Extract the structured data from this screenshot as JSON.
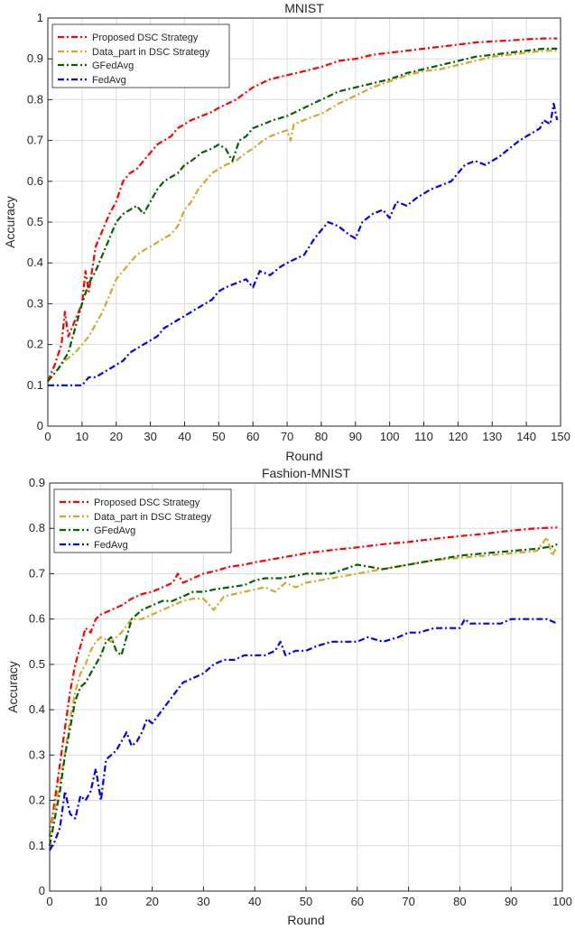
{
  "chart_data": [
    {
      "type": "line",
      "title": "MNIST",
      "xlabel": "Round",
      "ylabel": "Accuracy",
      "xlim": [
        0,
        150
      ],
      "ylim": [
        0,
        1
      ],
      "xticks": [
        0,
        10,
        20,
        30,
        40,
        50,
        60,
        70,
        80,
        90,
        100,
        110,
        120,
        130,
        140,
        150
      ],
      "yticks": [
        0,
        0.1,
        0.2,
        0.3,
        0.4,
        0.5,
        0.6,
        0.7,
        0.8,
        0.9,
        1
      ],
      "xtick_labels": [
        "0",
        "10",
        "20",
        "30",
        "40",
        "50",
        "60",
        "70",
        "80",
        "90",
        "100",
        "110",
        "120",
        "130",
        "140",
        "150"
      ],
      "ytick_labels": [
        "0",
        "0.1",
        "0.2",
        "0.3",
        "0.4",
        "0.5",
        "0.6",
        "0.7",
        "0.8",
        "0.9",
        "1"
      ],
      "grid": true,
      "legend_position": "top-left",
      "series": [
        {
          "name": "Proposed DSC Strategy",
          "color": "#ff0000",
          "x": [
            0,
            2,
            4,
            5,
            6,
            8,
            10,
            11,
            12,
            14,
            16,
            18,
            20,
            22,
            24,
            26,
            28,
            30,
            32,
            34,
            36,
            38,
            40,
            42,
            45,
            48,
            50,
            55,
            60,
            65,
            70,
            75,
            80,
            85,
            90,
            95,
            100,
            105,
            110,
            115,
            120,
            125,
            130,
            135,
            140,
            145,
            149
          ],
          "y": [
            0.11,
            0.15,
            0.2,
            0.28,
            0.22,
            0.26,
            0.3,
            0.38,
            0.33,
            0.44,
            0.48,
            0.52,
            0.55,
            0.6,
            0.62,
            0.63,
            0.65,
            0.67,
            0.69,
            0.7,
            0.71,
            0.73,
            0.74,
            0.75,
            0.76,
            0.77,
            0.78,
            0.8,
            0.83,
            0.85,
            0.86,
            0.87,
            0.88,
            0.895,
            0.9,
            0.91,
            0.915,
            0.92,
            0.925,
            0.93,
            0.935,
            0.94,
            0.943,
            0.945,
            0.948,
            0.95,
            0.95
          ]
        },
        {
          "name": "Data_part in DSC Strategy",
          "color": "#d4a72c",
          "x": [
            0,
            5,
            8,
            10,
            12,
            14,
            16,
            18,
            20,
            22,
            24,
            26,
            28,
            30,
            32,
            34,
            36,
            38,
            40,
            42,
            44,
            46,
            48,
            50,
            52,
            55,
            58,
            60,
            63,
            65,
            68,
            70,
            71,
            72,
            75,
            78,
            80,
            85,
            90,
            95,
            100,
            105,
            110,
            115,
            120,
            125,
            130,
            135,
            140,
            145,
            149
          ],
          "y": [
            0.11,
            0.16,
            0.18,
            0.2,
            0.22,
            0.25,
            0.28,
            0.32,
            0.36,
            0.38,
            0.4,
            0.42,
            0.43,
            0.44,
            0.45,
            0.46,
            0.47,
            0.49,
            0.53,
            0.55,
            0.58,
            0.6,
            0.62,
            0.63,
            0.64,
            0.65,
            0.67,
            0.68,
            0.7,
            0.71,
            0.72,
            0.725,
            0.7,
            0.74,
            0.75,
            0.76,
            0.765,
            0.79,
            0.81,
            0.83,
            0.845,
            0.86,
            0.87,
            0.875,
            0.885,
            0.895,
            0.905,
            0.91,
            0.915,
            0.92,
            0.92
          ]
        },
        {
          "name": "GFedAvg",
          "color": "#006400",
          "x": [
            0,
            3,
            6,
            8,
            10,
            12,
            14,
            16,
            18,
            20,
            22,
            24,
            26,
            28,
            30,
            32,
            34,
            36,
            38,
            40,
            42,
            45,
            48,
            50,
            52,
            54,
            56,
            58,
            60,
            63,
            66,
            70,
            75,
            80,
            85,
            90,
            95,
            100,
            105,
            110,
            115,
            120,
            125,
            130,
            135,
            140,
            145,
            149
          ],
          "y": [
            0.11,
            0.14,
            0.18,
            0.24,
            0.3,
            0.35,
            0.38,
            0.42,
            0.46,
            0.5,
            0.52,
            0.53,
            0.54,
            0.52,
            0.55,
            0.58,
            0.6,
            0.61,
            0.62,
            0.64,
            0.65,
            0.67,
            0.68,
            0.69,
            0.68,
            0.65,
            0.7,
            0.71,
            0.73,
            0.74,
            0.75,
            0.76,
            0.78,
            0.8,
            0.82,
            0.83,
            0.84,
            0.85,
            0.865,
            0.875,
            0.885,
            0.895,
            0.905,
            0.91,
            0.915,
            0.92,
            0.925,
            0.925
          ]
        },
        {
          "name": "FedAvg",
          "color": "#0000ff",
          "x": [
            0,
            5,
            10,
            12,
            14,
            16,
            18,
            20,
            22,
            24,
            26,
            28,
            30,
            32,
            34,
            36,
            38,
            40,
            42,
            44,
            46,
            48,
            50,
            52,
            55,
            58,
            60,
            62,
            65,
            68,
            70,
            75,
            78,
            80,
            82,
            85,
            88,
            90,
            92,
            95,
            98,
            100,
            102,
            105,
            108,
            110,
            112,
            115,
            118,
            120,
            122,
            125,
            128,
            130,
            132,
            135,
            138,
            140,
            142,
            144,
            145,
            147,
            148,
            149
          ],
          "y": [
            0.1,
            0.1,
            0.1,
            0.12,
            0.12,
            0.13,
            0.14,
            0.15,
            0.16,
            0.18,
            0.19,
            0.2,
            0.21,
            0.22,
            0.24,
            0.25,
            0.26,
            0.27,
            0.28,
            0.29,
            0.3,
            0.31,
            0.33,
            0.34,
            0.35,
            0.36,
            0.34,
            0.38,
            0.37,
            0.39,
            0.4,
            0.42,
            0.46,
            0.48,
            0.5,
            0.49,
            0.47,
            0.46,
            0.5,
            0.52,
            0.53,
            0.51,
            0.55,
            0.54,
            0.56,
            0.57,
            0.58,
            0.59,
            0.6,
            0.62,
            0.64,
            0.65,
            0.64,
            0.65,
            0.66,
            0.68,
            0.7,
            0.71,
            0.72,
            0.73,
            0.75,
            0.74,
            0.79,
            0.75
          ]
        }
      ]
    },
    {
      "type": "line",
      "title": "Fashion-MNIST",
      "xlabel": "Round",
      "ylabel": "Accuracy",
      "xlim": [
        0,
        100
      ],
      "ylim": [
        0,
        0.9
      ],
      "xticks": [
        0,
        10,
        20,
        30,
        40,
        50,
        60,
        70,
        80,
        90,
        100
      ],
      "yticks": [
        0,
        0.1,
        0.2,
        0.3,
        0.4,
        0.5,
        0.6,
        0.7,
        0.8,
        0.9
      ],
      "xtick_labels": [
        "0",
        "10",
        "20",
        "30",
        "40",
        "50",
        "60",
        "70",
        "80",
        "90",
        "100"
      ],
      "ytick_labels": [
        "0",
        "0.1",
        "0.2",
        "0.3",
        "0.4",
        "0.5",
        "0.6",
        "0.7",
        "0.8",
        "0.9"
      ],
      "grid": true,
      "legend_position": "top-left",
      "series": [
        {
          "name": "Proposed DSC Strategy",
          "color": "#ff0000",
          "x": [
            0,
            1,
            2,
            3,
            4,
            5,
            6,
            7,
            8,
            9,
            10,
            12,
            14,
            16,
            18,
            20,
            22,
            24,
            25,
            26,
            28,
            30,
            32,
            35,
            38,
            40,
            45,
            50,
            55,
            60,
            65,
            70,
            75,
            80,
            85,
            90,
            95,
            99
          ],
          "y": [
            0.12,
            0.2,
            0.28,
            0.36,
            0.44,
            0.5,
            0.54,
            0.58,
            0.57,
            0.6,
            0.61,
            0.62,
            0.63,
            0.645,
            0.655,
            0.66,
            0.67,
            0.68,
            0.7,
            0.68,
            0.69,
            0.7,
            0.705,
            0.715,
            0.72,
            0.725,
            0.735,
            0.745,
            0.752,
            0.758,
            0.765,
            0.77,
            0.777,
            0.783,
            0.788,
            0.795,
            0.8,
            0.802
          ]
        },
        {
          "name": "Data_part in DSC Strategy",
          "color": "#d4a72c",
          "x": [
            0,
            1,
            2,
            3,
            4,
            5,
            6,
            7,
            8,
            9,
            10,
            12,
            14,
            16,
            18,
            20,
            22,
            24,
            26,
            28,
            30,
            32,
            34,
            36,
            38,
            40,
            42,
            44,
            46,
            48,
            50,
            55,
            60,
            65,
            70,
            75,
            80,
            85,
            90,
            95,
            97,
            98,
            99
          ],
          "y": [
            0.12,
            0.18,
            0.24,
            0.3,
            0.38,
            0.44,
            0.48,
            0.5,
            0.53,
            0.55,
            0.56,
            0.55,
            0.57,
            0.6,
            0.6,
            0.61,
            0.62,
            0.63,
            0.64,
            0.645,
            0.645,
            0.62,
            0.65,
            0.655,
            0.66,
            0.665,
            0.67,
            0.66,
            0.68,
            0.67,
            0.68,
            0.69,
            0.7,
            0.71,
            0.72,
            0.73,
            0.735,
            0.74,
            0.745,
            0.75,
            0.78,
            0.74,
            0.76
          ]
        },
        {
          "name": "GFedAvg",
          "color": "#006400",
          "x": [
            0,
            1,
            2,
            3,
            4,
            5,
            6,
            7,
            8,
            9,
            10,
            11,
            12,
            13,
            14,
            15,
            16,
            17,
            18,
            20,
            22,
            24,
            26,
            28,
            30,
            32,
            35,
            38,
            40,
            42,
            45,
            48,
            50,
            55,
            60,
            65,
            70,
            75,
            80,
            85,
            90,
            95,
            98,
            99
          ],
          "y": [
            0.1,
            0.16,
            0.22,
            0.3,
            0.36,
            0.42,
            0.45,
            0.46,
            0.48,
            0.5,
            0.52,
            0.55,
            0.56,
            0.53,
            0.52,
            0.56,
            0.6,
            0.61,
            0.62,
            0.63,
            0.64,
            0.64,
            0.65,
            0.66,
            0.66,
            0.665,
            0.67,
            0.675,
            0.685,
            0.69,
            0.69,
            0.695,
            0.7,
            0.7,
            0.72,
            0.71,
            0.72,
            0.73,
            0.74,
            0.745,
            0.75,
            0.755,
            0.76,
            0.765
          ]
        },
        {
          "name": "FedAvg",
          "color": "#0000ff",
          "x": [
            0,
            1,
            2,
            3,
            4,
            5,
            6,
            7,
            8,
            9,
            10,
            11,
            12,
            13,
            14,
            15,
            16,
            17,
            18,
            19,
            20,
            22,
            24,
            26,
            28,
            30,
            32,
            34,
            36,
            38,
            40,
            42,
            44,
            45,
            46,
            48,
            50,
            52,
            55,
            58,
            60,
            62,
            65,
            68,
            70,
            72,
            75,
            78,
            80,
            81,
            82,
            85,
            88,
            90,
            92,
            95,
            97,
            99
          ],
          "y": [
            0.09,
            0.11,
            0.14,
            0.22,
            0.17,
            0.16,
            0.21,
            0.2,
            0.22,
            0.27,
            0.2,
            0.29,
            0.3,
            0.31,
            0.33,
            0.35,
            0.32,
            0.33,
            0.35,
            0.38,
            0.37,
            0.4,
            0.43,
            0.46,
            0.47,
            0.48,
            0.5,
            0.51,
            0.51,
            0.52,
            0.52,
            0.52,
            0.53,
            0.55,
            0.52,
            0.53,
            0.53,
            0.54,
            0.55,
            0.55,
            0.55,
            0.56,
            0.55,
            0.56,
            0.57,
            0.57,
            0.58,
            0.58,
            0.58,
            0.6,
            0.59,
            0.59,
            0.59,
            0.6,
            0.6,
            0.6,
            0.6,
            0.59
          ]
        }
      ]
    }
  ]
}
